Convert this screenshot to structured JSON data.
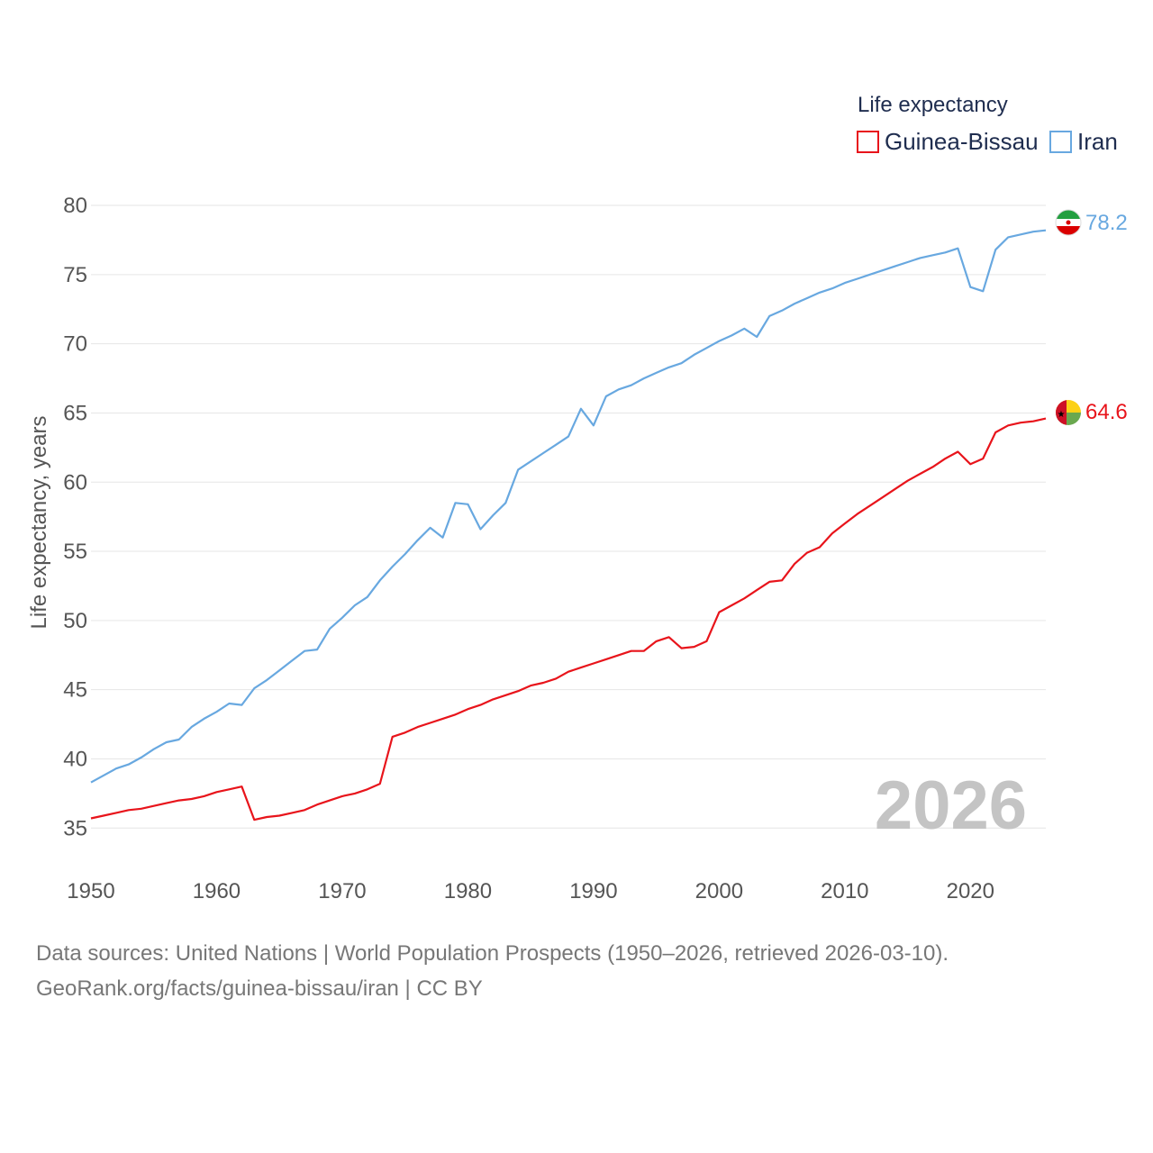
{
  "chart_data": {
    "type": "line",
    "title": "",
    "legend_title": "Life expectancy",
    "legend_position": "top-right",
    "xlabel": "",
    "ylabel": "Life expectancy, years",
    "xlim": [
      1950,
      2026
    ],
    "ylim": [
      33,
      81.5
    ],
    "x_ticks": [
      1950,
      1960,
      1970,
      1980,
      1990,
      2000,
      2010,
      2020
    ],
    "y_ticks": [
      35,
      40,
      45,
      50,
      55,
      60,
      65,
      70,
      75,
      80
    ],
    "grid": true,
    "year_watermark": "2026",
    "x": [
      1950,
      1951,
      1952,
      1953,
      1954,
      1955,
      1956,
      1957,
      1958,
      1959,
      1960,
      1961,
      1962,
      1963,
      1964,
      1965,
      1966,
      1967,
      1968,
      1969,
      1970,
      1971,
      1972,
      1973,
      1974,
      1975,
      1976,
      1977,
      1978,
      1979,
      1980,
      1981,
      1982,
      1983,
      1984,
      1985,
      1986,
      1987,
      1988,
      1989,
      1990,
      1991,
      1992,
      1993,
      1994,
      1995,
      1996,
      1997,
      1998,
      1999,
      2000,
      2001,
      2002,
      2003,
      2004,
      2005,
      2006,
      2007,
      2008,
      2009,
      2010,
      2011,
      2012,
      2013,
      2014,
      2015,
      2016,
      2017,
      2018,
      2019,
      2020,
      2021,
      2022,
      2023,
      2024,
      2025,
      2026
    ],
    "series": [
      {
        "name": "Guinea-Bissau",
        "color": "#e8141b",
        "flag": "guinea-bissau-flag",
        "end_label": "64.6",
        "values": [
          35.7,
          35.9,
          36.1,
          36.3,
          36.4,
          36.6,
          36.8,
          37.0,
          37.1,
          37.3,
          37.6,
          37.8,
          38.0,
          35.6,
          35.8,
          35.9,
          36.1,
          36.3,
          36.7,
          37.0,
          37.3,
          37.5,
          37.8,
          38.2,
          41.6,
          41.9,
          42.3,
          42.6,
          42.9,
          43.2,
          43.6,
          43.9,
          44.3,
          44.6,
          44.9,
          45.3,
          45.5,
          45.8,
          46.3,
          46.6,
          46.9,
          47.2,
          47.5,
          47.8,
          47.8,
          48.5,
          48.8,
          48.0,
          48.1,
          48.5,
          50.6,
          51.1,
          51.6,
          52.2,
          52.8,
          52.9,
          54.1,
          54.9,
          55.3,
          56.3,
          57.0,
          57.7,
          58.3,
          58.9,
          59.5,
          60.1,
          60.6,
          61.1,
          61.7,
          62.2,
          61.3,
          61.7,
          63.6,
          64.1,
          64.3,
          64.4,
          64.6
        ]
      },
      {
        "name": "Iran",
        "color": "#68a8e0",
        "flag": "iran-flag",
        "end_label": "78.2",
        "values": [
          38.3,
          38.8,
          39.3,
          39.6,
          40.1,
          40.7,
          41.2,
          41.4,
          42.3,
          42.9,
          43.4,
          44.0,
          43.9,
          45.1,
          45.7,
          46.4,
          47.1,
          47.8,
          47.9,
          49.4,
          50.2,
          51.1,
          51.7,
          52.9,
          53.9,
          54.8,
          55.8,
          56.7,
          56.0,
          58.5,
          58.4,
          56.6,
          57.6,
          58.5,
          60.9,
          61.5,
          62.1,
          62.7,
          63.3,
          65.3,
          64.1,
          66.2,
          66.7,
          67.0,
          67.5,
          67.9,
          68.3,
          68.6,
          69.2,
          69.7,
          70.2,
          70.6,
          71.1,
          70.5,
          72.0,
          72.4,
          72.9,
          73.3,
          73.7,
          74.0,
          74.4,
          74.7,
          75.0,
          75.3,
          75.6,
          75.9,
          76.2,
          76.4,
          76.6,
          76.9,
          74.1,
          73.8,
          76.8,
          77.7,
          77.9,
          78.1,
          78.2
        ]
      }
    ]
  },
  "footer": {
    "source_line": "Data sources: United Nations | World Population Prospects (1950–2026, retrieved 2026-03-10).",
    "url_line": "GeoRank.org/facts/guinea-bissau/iran | CC BY"
  }
}
